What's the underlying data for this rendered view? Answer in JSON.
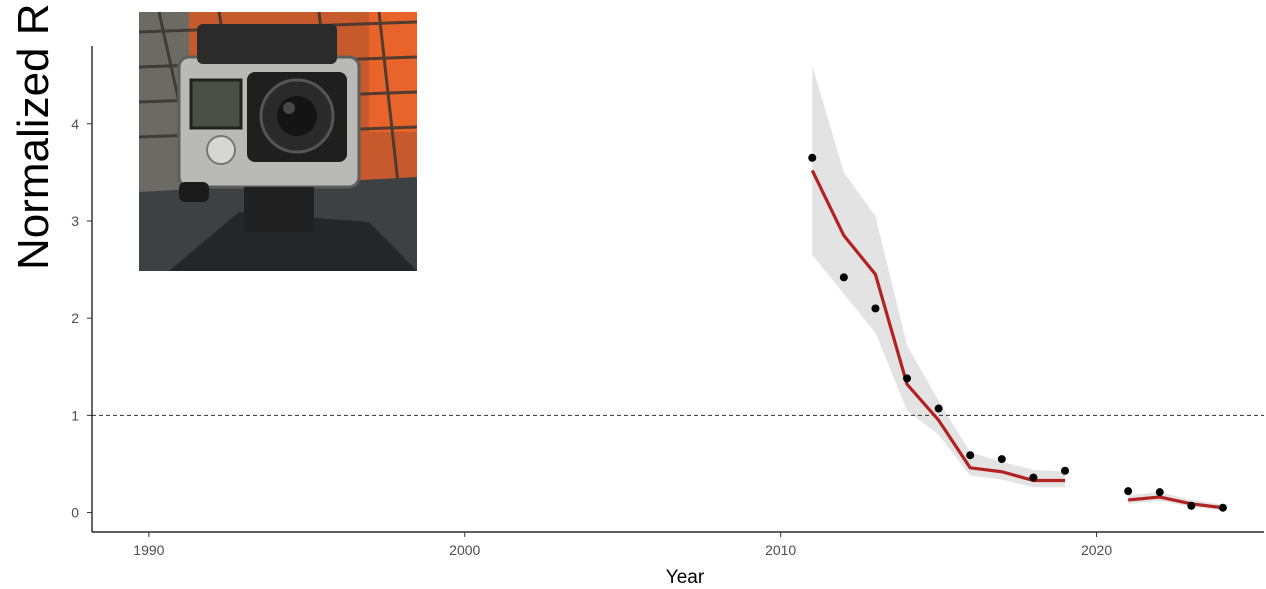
{
  "chart_data": {
    "type": "line",
    "xlabel": "Year",
    "ylabel": "Normalized R",
    "xlim": [
      1988.2,
      2025.3
    ],
    "ylim": [
      -0.2,
      4.8
    ],
    "x_ticks": [
      1990,
      2000,
      2010,
      2020
    ],
    "y_ticks": [
      0,
      1,
      2,
      3,
      4
    ],
    "reference_line": {
      "y": 1,
      "style": "dashed"
    },
    "points": [
      {
        "x": 2011,
        "y": 3.65
      },
      {
        "x": 2012,
        "y": 2.42
      },
      {
        "x": 2013,
        "y": 2.1
      },
      {
        "x": 2014,
        "y": 1.38
      },
      {
        "x": 2015,
        "y": 1.07
      },
      {
        "x": 2016,
        "y": 0.59
      },
      {
        "x": 2017,
        "y": 0.55
      },
      {
        "x": 2018,
        "y": 0.36
      },
      {
        "x": 2019,
        "y": 0.43
      },
      {
        "x": 2021,
        "y": 0.22
      },
      {
        "x": 2022,
        "y": 0.21
      },
      {
        "x": 2023,
        "y": 0.07
      },
      {
        "x": 2024,
        "y": 0.05
      }
    ],
    "series": [
      {
        "segments": [
          {
            "x": [
              2011,
              2012,
              2013,
              2014,
              2015,
              2016,
              2017,
              2018,
              2019
            ],
            "y": [
              3.52,
              2.85,
              2.45,
              1.32,
              0.95,
              0.46,
              0.42,
              0.33,
              0.33
            ],
            "lower": [
              2.65,
              2.25,
              1.85,
              1.05,
              0.8,
              0.38,
              0.34,
              0.26,
              0.26
            ],
            "upper": [
              4.6,
              3.5,
              3.05,
              1.72,
              1.15,
              0.62,
              0.52,
              0.44,
              0.42
            ]
          },
          {
            "x": [
              2021,
              2022,
              2023,
              2024
            ],
            "y": [
              0.13,
              0.16,
              0.09,
              0.05
            ],
            "lower": [
              0.09,
              0.12,
              0.06,
              0.02
            ],
            "upper": [
              0.18,
              0.21,
              0.13,
              0.08
            ]
          }
        ]
      }
    ],
    "grid": false,
    "colors": {
      "line": "#b22222",
      "band": "#e3e3e3",
      "points": "#000000",
      "reference": "#333333"
    }
  },
  "inset_photo": {
    "icon": "gopro-camera-photo"
  }
}
